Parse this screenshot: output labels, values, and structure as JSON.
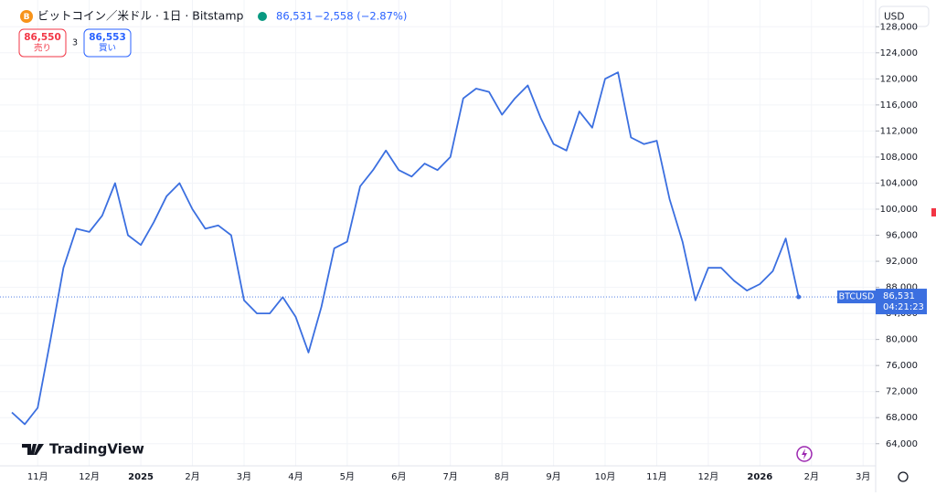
{
  "chart_data": {
    "type": "line",
    "title": "ビットコイン／米ドル · 1日 · Bitstamp",
    "header_price": "86,531",
    "header_change": "−2,558 (−2.87%)",
    "sell_price": "86,550",
    "sell_label": "売り",
    "spread": "3",
    "buy_price": "86,553",
    "buy_label": "買い",
    "currency": "USD",
    "symbol_tag": "BTCUSD",
    "price_tag": "86,531",
    "countdown": "04:21:23",
    "logo": "TradingView",
    "categories": [
      null,
      null,
      "11月",
      null,
      null,
      null,
      "12月",
      null,
      null,
      null,
      "2025",
      null,
      null,
      null,
      "2月",
      null,
      null,
      null,
      "3月",
      null,
      null,
      null,
      "4月",
      null,
      null,
      null,
      "5月",
      null,
      null,
      null,
      "6月",
      null,
      null,
      null,
      "7月",
      null,
      null,
      null,
      "8月",
      null,
      null,
      null,
      "9月",
      null,
      null,
      null,
      "10月",
      null,
      null,
      null,
      "11月",
      null,
      null,
      null,
      "12月",
      null,
      null,
      null,
      "2026",
      null,
      null,
      null,
      "2月",
      null,
      null,
      null,
      "3月"
    ],
    "series": [
      {
        "name": "BTCUSD",
        "color": "#3b6fe0",
        "values": [
          68800,
          67000,
          69500,
          80000,
          91000,
          97000,
          96500,
          99000,
          104000,
          96000,
          94500,
          98000,
          102000,
          104000,
          100000,
          97000,
          97500,
          96000,
          86000,
          84000,
          84000,
          86500,
          83500,
          78000,
          85000,
          94000,
          95000,
          103500,
          106000,
          109000,
          106000,
          105000,
          107000,
          106000,
          108000,
          117000,
          118500,
          118000,
          114500,
          117000,
          119000,
          114000,
          110000,
          109000,
          115000,
          112500,
          120000,
          121000,
          111000,
          110000,
          110500,
          101500,
          95000,
          86000,
          91000,
          91000,
          89000,
          87500,
          88500,
          90500,
          95500,
          86531,
          null,
          null,
          null,
          null,
          null
        ]
      }
    ],
    "ylim": [
      60600,
      128600
    ],
    "yticks": [
      {
        "value": 64000,
        "label": "64,000"
      },
      {
        "value": 68000,
        "label": "68,000"
      },
      {
        "value": 72000,
        "label": "72,000"
      },
      {
        "value": 76000,
        "label": "76,000"
      },
      {
        "value": 80000,
        "label": "80,000"
      },
      {
        "value": 84000,
        "label": "84,000"
      },
      {
        "value": 88000,
        "label": "88,000"
      },
      {
        "value": 92000,
        "label": "92,000"
      },
      {
        "value": 96000,
        "label": "96,000"
      },
      {
        "value": 100000,
        "label": "100,000"
      },
      {
        "value": 104000,
        "label": "104,000"
      },
      {
        "value": 108000,
        "label": "108,000"
      },
      {
        "value": 112000,
        "label": "112,000"
      },
      {
        "value": 116000,
        "label": "116,000"
      },
      {
        "value": 120000,
        "label": "120,000"
      },
      {
        "value": 124000,
        "label": "124,000"
      },
      {
        "value": 128000,
        "label": "128,000"
      }
    ],
    "grid": true
  }
}
